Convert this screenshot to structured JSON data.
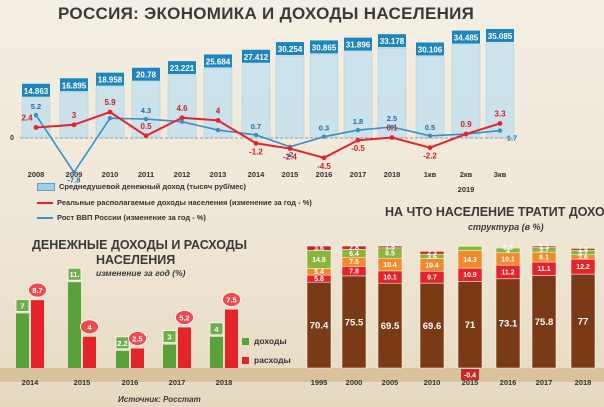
{
  "title": "РОССИЯ: ЭКОНОМИКА И ДОХОДЫ НАСЕЛЕНИЯ",
  "source": "Источник: Росстат",
  "legend_top": [
    {
      "label": "Среднедушевой денежный доход (тысяч руб/мес)",
      "color": "#9ecfe6"
    },
    {
      "label": "Реальные располагаемые доходы населения  (изменение за год - %)",
      "color": "#e5232a"
    },
    {
      "label": "Рост ВВП России (изменение за год - %)",
      "color": "#3b8fc4"
    }
  ],
  "top_year_label": "2019",
  "right_title": "НА ЧТО НАСЕЛЕНИЕ ТРАТИТ ДОХОДЫ",
  "right_caption": "структура (в %)",
  "left_title_line1": "ДЕНЕЖНЫЕ ДОХОДЫ И РАСХОДЫ",
  "left_title_line2": "НАСЕЛЕНИЯ",
  "left_caption": "изменение за год (%)",
  "left_legend": [
    {
      "label": "доходы",
      "color": "#5aa13a"
    },
    {
      "label": "расходы",
      "color": "#e5232a"
    }
  ],
  "chart_data": [
    {
      "type": "bar",
      "title": "РОССИЯ: ЭКОНОМИКА И ДОХОДЫ НАСЕЛЕНИЯ",
      "categories": [
        "2008",
        "2009",
        "2010",
        "2011",
        "2012",
        "2013",
        "2014",
        "2015",
        "2016",
        "2017",
        "2018",
        "1кв",
        "2кв",
        "3кв"
      ],
      "series": [
        {
          "name": "Среднедушевой денежный доход (тысяч руб/мес)",
          "type": "bar",
          "values": [
            14.863,
            16.895,
            18.958,
            20.78,
            23.221,
            25.684,
            27.412,
            30.254,
            30.865,
            31.896,
            33.178,
            30.106,
            34.485,
            35.085
          ],
          "labels": [
            "14.863",
            "16.895",
            "18.958",
            "20.78",
            "23.221",
            "25.684",
            "27.412",
            "30.254",
            "30.865",
            "31.896",
            "33.178",
            "30.106",
            "34.485",
            "35.085"
          ]
        },
        {
          "name": "Реальные располагаемые доходы населения  (изменение за год - %)",
          "type": "line",
          "values": [
            2.4,
            3,
            5.9,
            0.5,
            4.6,
            4,
            -1.2,
            -2.4,
            -4.5,
            -0.5,
            0.1,
            -2.2,
            0.9,
            3.3
          ],
          "labels": [
            "2.4",
            "3",
            "5.9",
            "0.5",
            "4.6",
            "4",
            "-1.2",
            "-2.4",
            "-4.5",
            "-0.5",
            "0.1",
            "-2.2",
            "0.9",
            "3.3"
          ]
        },
        {
          "name": "Рост ВВП России (изменение за год - %)",
          "type": "line",
          "values": [
            5.2,
            -7.8,
            4.5,
            4.3,
            3.7,
            1.8,
            0.7,
            -2,
            0.3,
            1.8,
            2.5,
            0.5,
            0.9,
            1.7
          ],
          "labels": [
            "5.2",
            "-7.8",
            "",
            "4.3",
            "",
            "",
            "0.7",
            "-2",
            "0.3",
            "1.8",
            "2.5",
            "0.5",
            "",
            "1.7"
          ]
        }
      ],
      "axis_zero_label": "0"
    },
    {
      "type": "bar",
      "title": "ДЕНЕЖНЫЕ ДОХОДЫ И РАСХОДЫ НАСЕЛЕНИЯ",
      "categories": [
        "2014",
        "2015",
        "2016",
        "2017",
        "2018"
      ],
      "series": [
        {
          "name": "доходы",
          "values": [
            7,
            11,
            2.2,
            3,
            4
          ],
          "labels": [
            "7",
            "11.",
            "2.2",
            "3",
            "4"
          ]
        },
        {
          "name": "расходы",
          "values": [
            8.7,
            4,
            2.5,
            5.2,
            7.5
          ],
          "labels": [
            "8.7",
            "4",
            "2.5",
            "5.2",
            "7.5"
          ]
        }
      ]
    },
    {
      "type": "bar",
      "title": "НА ЧТО НАСЕЛЕНИЕ ТРАТИТ ДОХОДЫ",
      "stacked": true,
      "categories": [
        "1995",
        "2000",
        "2005",
        "2010",
        "2015",
        "2016",
        "2017",
        "2018"
      ],
      "series": [
        {
          "name": "s1",
          "color": "#7a3a16",
          "values": [
            70.4,
            75.5,
            69.5,
            69.6,
            71,
            73.1,
            75.8,
            77
          ],
          "labels": [
            "70.4",
            "75.5",
            "69.5",
            "69.6",
            "71",
            "73.1",
            "75.8",
            "77"
          ]
        },
        {
          "name": "s2",
          "color": "#e5232a",
          "values": [
            5.8,
            7.8,
            10.1,
            9.7,
            10.9,
            11.2,
            11.1,
            12.2
          ],
          "labels": [
            "5.8",
            "7.8",
            "10.1",
            "9.7",
            "10.9",
            "11.2",
            "11.1",
            "12.2"
          ]
        },
        {
          "name": "s3",
          "color": "#f08a2b",
          "values": [
            5.4,
            7.5,
            10.4,
            10.4,
            14.3,
            10.1,
            8.1,
            3.6
          ],
          "labels": [
            "5.4",
            "7.5",
            "10.4",
            "10.4",
            "14.3",
            "10.1",
            "8.1",
            "3.6"
          ]
        },
        {
          "name": "s4",
          "color": "#8ab43a",
          "values": [
            14.8,
            6.4,
            8.5,
            3.6,
            3.5,
            4,
            3.7,
            3.7
          ],
          "labels": [
            "14.8",
            "6.4",
            "8.5",
            "3.6",
            "",
            "4",
            "3.7",
            "3.7"
          ]
        },
        {
          "name": "s5",
          "color": "#c72a2a",
          "values": [
            3.6,
            2.8,
            1.5,
            2.3,
            -0.4,
            0.6,
            1.3,
            1.5
          ],
          "labels": [
            "3.6",
            "2.8",
            "1.5",
            "2.3",
            "-0.4",
            "0.6",
            "1.3",
            "1.5"
          ]
        }
      ]
    }
  ]
}
